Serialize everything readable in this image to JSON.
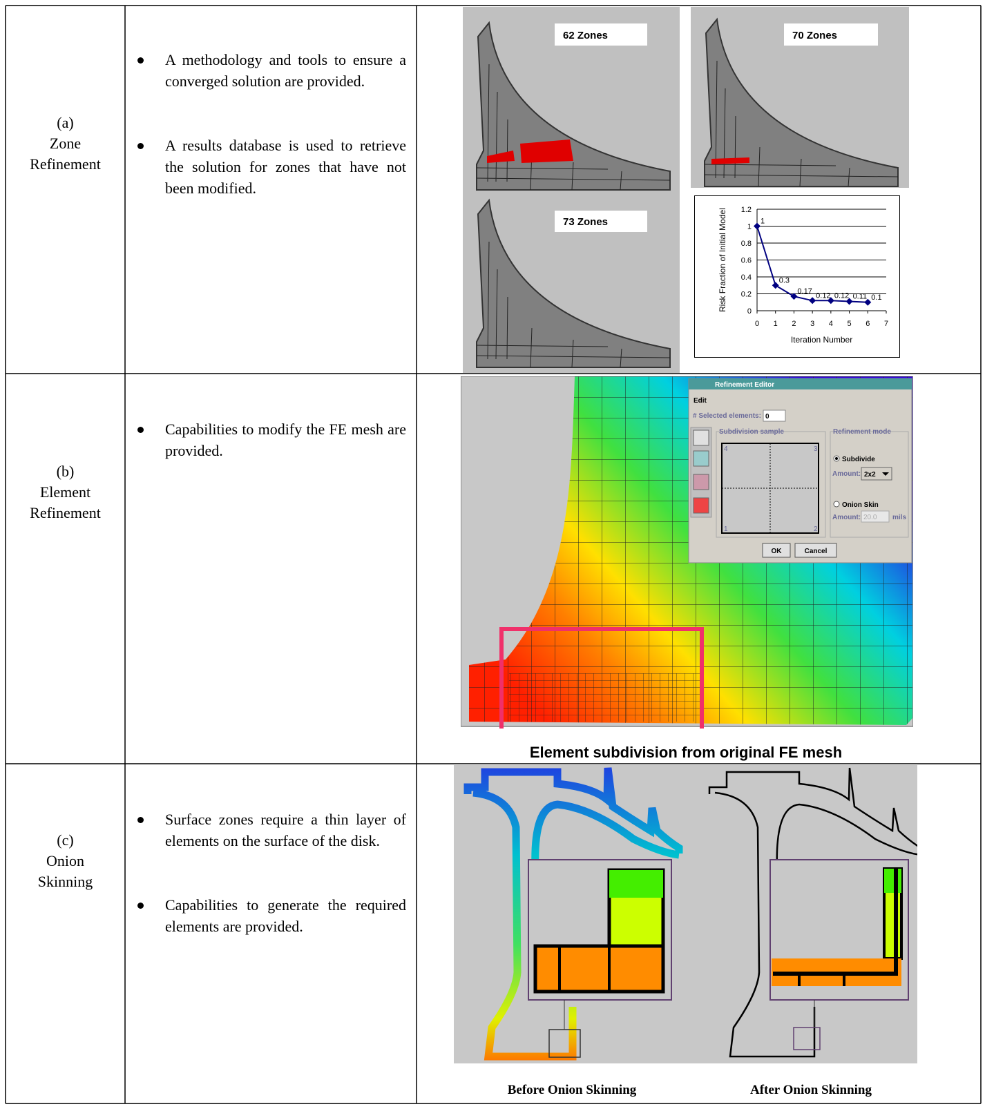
{
  "table": {
    "rows": [
      {
        "label": [
          "(a)",
          "Zone",
          "Refinement"
        ],
        "bullets": [
          "A methodology and tools to ensure a converged solution are provided.",
          "A results database is used to retrieve the solution for zones that have not been modified."
        ],
        "figure": {
          "panels": [
            "62 Zones",
            "70 Zones",
            "73 Zones"
          ]
        }
      },
      {
        "label": [
          "(b)",
          "Element",
          "Refinement"
        ],
        "bullets": [
          "Capabilities to modify the FE mesh are provided."
        ],
        "figure": {
          "dialog": {
            "title": "Refinement Editor",
            "menu": "Edit",
            "selected_label": "# Selected elements:",
            "selected_value": "0",
            "sample_title": "Subdivision sample",
            "corners": [
              "4",
              "3",
              "1",
              "2"
            ],
            "mode_title": "Refinement mode",
            "subdivide": "Subdivide",
            "amount_label": "Amount:",
            "amount_value": "2x2",
            "onion": "Onion Skin",
            "onion_amount_label": "Amount:",
            "onion_amount_value": "20.0",
            "onion_unit": "mils",
            "ok": "OK",
            "cancel": "Cancel"
          },
          "caption": "Element subdivision from original FE mesh"
        }
      },
      {
        "label": [
          "(c)",
          "Onion",
          "Skinning"
        ],
        "bullets": [
          "Surface zones require a thin layer of elements on the surface of the disk.",
          "Capabilities to generate the required elements are provided."
        ],
        "figure": {
          "captions": [
            "Before Onion Skinning",
            "After Onion Skinning"
          ]
        }
      }
    ]
  },
  "chart_data": {
    "type": "line",
    "x": [
      0,
      1,
      2,
      3,
      4,
      5,
      6
    ],
    "values": [
      1,
      0.3,
      0.17,
      0.12,
      0.12,
      0.11,
      0.1
    ],
    "color": "#000080",
    "x_label": "Iteration Number",
    "y_label": "Risk Fraction of Initial Model",
    "xlim": [
      0,
      7
    ],
    "xticks": [
      0,
      1,
      2,
      3,
      4,
      5,
      6,
      7
    ],
    "ylim": [
      0,
      1.2
    ],
    "yticks": [
      0,
      0.2,
      0.4,
      0.6,
      0.8,
      1,
      1.2
    ],
    "grid": true
  }
}
